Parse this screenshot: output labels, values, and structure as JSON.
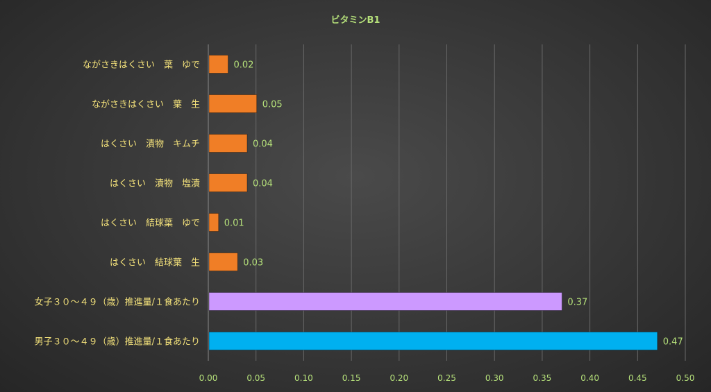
{
  "chart_data": {
    "type": "bar",
    "orientation": "horizontal",
    "title": "ビタミンB1",
    "xlabel": "",
    "ylabel": "",
    "xlim": [
      0,
      0.5
    ],
    "x_ticks": [
      "0.00",
      "0.05",
      "0.10",
      "0.15",
      "0.20",
      "0.25",
      "0.30",
      "0.35",
      "0.40",
      "0.45",
      "0.50"
    ],
    "grid": true,
    "categories": [
      "ながさきはくさい　葉　ゆで",
      "ながさきはくさい　葉　生",
      "はくさい　漬物　キムチ",
      "はくさい　漬物　塩漬",
      "はくさい　結球葉　ゆで",
      "はくさい　結球葉　生",
      "女子３０～４９（歳）推進量/１食あたり",
      "男子３０～４９（歳）推進量/１食あたり"
    ],
    "values": [
      0.02,
      0.05,
      0.04,
      0.04,
      0.01,
      0.03,
      0.37,
      0.47
    ],
    "value_labels": [
      "0.02",
      "0.05",
      "0.04",
      "0.04",
      "0.01",
      "0.03",
      "0.37",
      "0.47"
    ],
    "colors": [
      "#f07e26",
      "#f07e26",
      "#f07e26",
      "#f07e26",
      "#f07e26",
      "#f07e26",
      "#cc99ff",
      "#00b0f0"
    ],
    "text_color": "#b5e07a",
    "label_color": "#f2e07a",
    "grid_color": "#6a6a6a"
  }
}
